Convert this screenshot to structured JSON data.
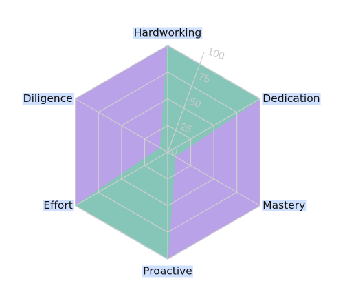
{
  "chart_data": {
    "type": "radar",
    "categories": [
      "Hardworking",
      "Dedication",
      "Mastery",
      "Proactive",
      "Effort",
      "Diligence"
    ],
    "rlim": [
      0,
      100
    ],
    "ticks": [
      0,
      25,
      50,
      75,
      100
    ],
    "tick_labels": [
      "0",
      "25",
      "50",
      "75",
      "100"
    ],
    "grid": true,
    "series": [
      {
        "values": [
          100,
          100,
          100,
          100,
          100,
          100
        ],
        "color": "#b9a2e8",
        "stroke": "#8e5ee0"
      },
      {
        "values": [
          100,
          100,
          8,
          100,
          100,
          8
        ],
        "color": "#86c6b8",
        "stroke": "#86c6b8"
      }
    ]
  }
}
